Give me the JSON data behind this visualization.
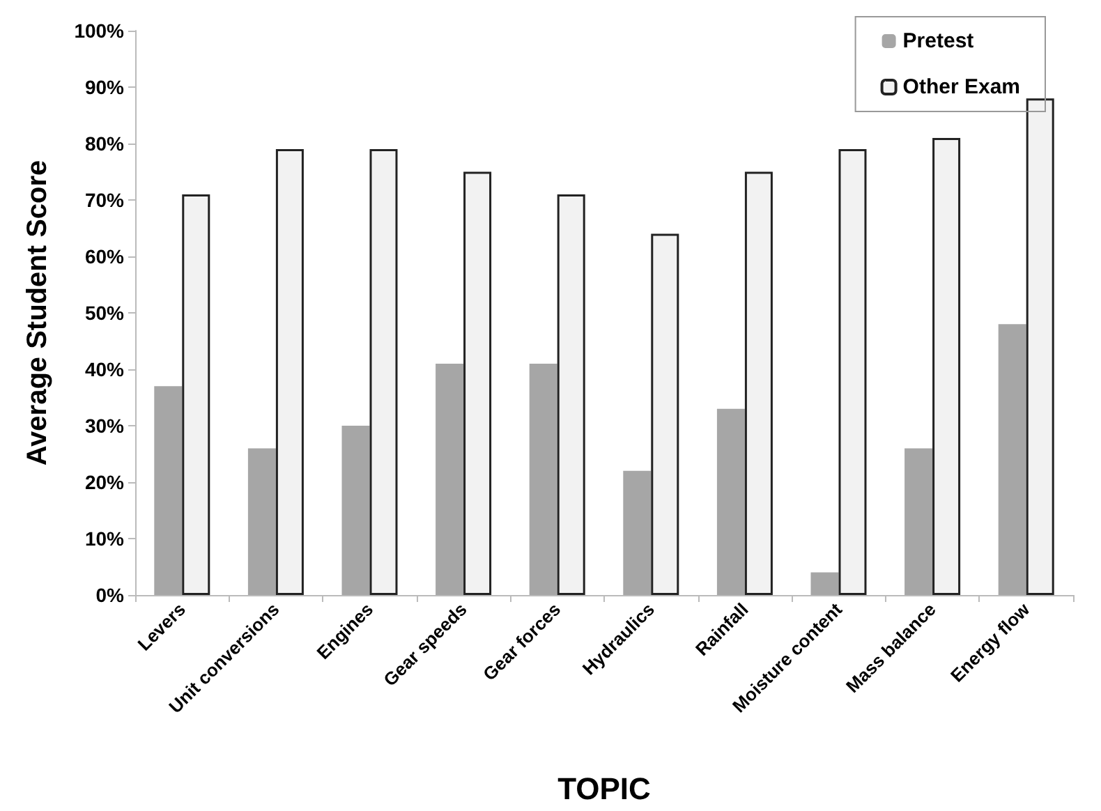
{
  "chart_data": {
    "type": "bar",
    "xlabel": "TOPIC",
    "ylabel": "Average Student Score",
    "categories": [
      "Levers",
      "Unit conversions",
      "Engines",
      "Gear speeds",
      "Gear forces",
      "Hydraulics",
      "Rainfall",
      "Moisture content",
      "Mass balance",
      "Energy flow"
    ],
    "series": [
      {
        "name": "Pretest",
        "color": "#a6a6a6",
        "values": [
          37,
          26,
          30,
          41,
          41,
          22,
          33,
          4,
          26,
          48
        ]
      },
      {
        "name": "Other Exam",
        "color": "#f2f2f2",
        "values": [
          71,
          79,
          79,
          75,
          71,
          64,
          75,
          79,
          81,
          88
        ]
      }
    ],
    "ylim": [
      0,
      100
    ],
    "yticks": [
      {
        "value": 0,
        "label": "0%"
      },
      {
        "value": 10,
        "label": "10%"
      },
      {
        "value": 20,
        "label": "20%"
      },
      {
        "value": 30,
        "label": "30%"
      },
      {
        "value": 40,
        "label": "40%"
      },
      {
        "value": 50,
        "label": "50%"
      },
      {
        "value": 60,
        "label": "60%"
      },
      {
        "value": 70,
        "label": "70%"
      },
      {
        "value": 80,
        "label": "80%"
      },
      {
        "value": 90,
        "label": "90%"
      },
      {
        "value": 100,
        "label": "100%"
      }
    ],
    "grid": false,
    "legend": "top right"
  }
}
